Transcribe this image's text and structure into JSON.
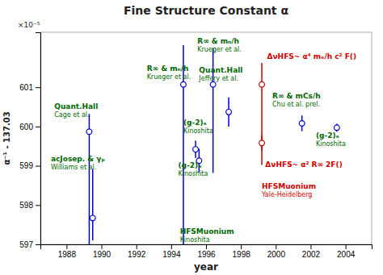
{
  "chart_data": {
    "type": "scatter",
    "title": "Fine Structure Constant α",
    "xlabel": "year",
    "ylabel": "α⁻¹ - 137.03",
    "y_scale_note": "×10⁻⁵",
    "xlim": [
      1986.5,
      2005.5
    ],
    "ylim": [
      597.0,
      602.4
    ],
    "xticks": [
      1988,
      1990,
      1992,
      1994,
      1996,
      1998,
      2000,
      2002,
      2004
    ],
    "yticks": [
      597,
      598,
      599,
      600,
      601
    ],
    "grid": false,
    "marker": "circle",
    "x": [
      1989.3,
      1989.5,
      1994.7,
      1995.4,
      1995.6,
      1996.4,
      1997.3,
      1999.2,
      1999.2,
      2001.5,
      2003.5
    ],
    "values": [
      599.87,
      597.67,
      601.07,
      599.42,
      599.13,
      601.07,
      600.37,
      601.07,
      599.58,
      600.08,
      599.97
    ],
    "error_low": [
      2.87,
      0.57,
      4.07,
      0.22,
      0.3,
      2.25,
      0.37,
      2.05,
      0.2,
      0.2,
      0.1
    ],
    "error_high": [
      0.45,
      1.25,
      1.0,
      0.22,
      0.3,
      0.93,
      0.37,
      0.55,
      0.2,
      0.2,
      0.1
    ],
    "colors": [
      "#0000cc",
      "#0000cc",
      "#0000cc",
      "#0000cc",
      "#0000cc",
      "#0000cc",
      "#0000cc",
      "#cc0000",
      "#cc0000",
      "#0000cc",
      "#0000cc"
    ],
    "annotations": [
      {
        "x": 1987.3,
        "y": 600.45,
        "lines": [
          "Quant.Hall",
          "Cage et al."
        ],
        "color": "#006600"
      },
      {
        "x": 1987.1,
        "y": 599.12,
        "lines": [
          "acJosep. & γₚ",
          "Williams et al."
        ],
        "color": "#006600"
      },
      {
        "x": 1992.6,
        "y": 601.42,
        "lines": [
          "R∞ & mₙ/h",
          "Krueger et al."
        ],
        "color": "#006600"
      },
      {
        "x": 1995.5,
        "y": 602.12,
        "lines": [
          "R∞ & mₙ/h",
          "Krueger et al."
        ],
        "color": "#006600"
      },
      {
        "x": 1995.6,
        "y": 601.38,
        "lines": [
          "Quant.Hall",
          "Jeffery et al."
        ],
        "color": "#006600"
      },
      {
        "x": 1994.7,
        "y": 600.03,
        "lines": [
          "(g-2)ₑ",
          "Kinoshita"
        ],
        "color": "#006600"
      },
      {
        "x": 1994.4,
        "y": 598.95,
        "lines": [
          "(g-2)ₑ",
          "Kinoshita"
        ],
        "color": "#006600"
      },
      {
        "x": 1994.5,
        "y": 597.27,
        "lines": [
          "HFSMuonium",
          "Kinoshita"
        ],
        "color": "#006600"
      },
      {
        "x": 1999.8,
        "y": 600.72,
        "lines": [
          "R∞ & mCs/h",
          "Chu et al. prel."
        ],
        "color": "#006600"
      },
      {
        "x": 2002.3,
        "y": 599.72,
        "lines": [
          "(g-2)ₑ",
          "Kinoshita"
        ],
        "color": "#006600"
      },
      {
        "x": 1999.5,
        "y": 601.72,
        "lines": [
          "ΔνHFS~ α⁴ mₑ/h c² F()"
        ],
        "color": "#cc0000"
      },
      {
        "x": 1999.4,
        "y": 598.97,
        "lines": [
          "ΔνHFS~ α² R∞ 2F()"
        ],
        "color": "#cc0000"
      },
      {
        "x": 1999.2,
        "y": 598.42,
        "lines": [
          "HFSMuonium",
          "Yale-Heidelberg"
        ],
        "color": "#cc0000"
      }
    ]
  }
}
